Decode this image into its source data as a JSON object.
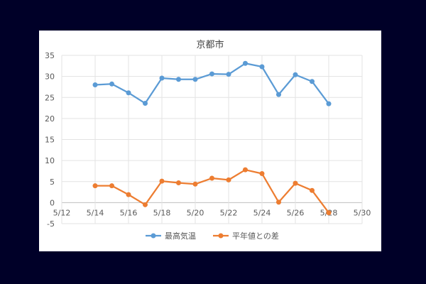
{
  "chart_data": {
    "type": "line",
    "title": "京都市",
    "xlabel": "",
    "ylabel": "",
    "x_ticks": [
      "5/12",
      "5/14",
      "5/16",
      "5/18",
      "5/20",
      "5/22",
      "5/24",
      "5/26",
      "5/28",
      "5/30"
    ],
    "y_ticks": [
      "35",
      "30",
      "25",
      "20",
      "15",
      "10",
      "5",
      "0",
      "-5"
    ],
    "xlim": [
      "5/12",
      "5/30"
    ],
    "ylim": [
      -5,
      35
    ],
    "grid": true,
    "legend_position": "bottom",
    "x": [
      "5/14",
      "5/15",
      "5/16",
      "5/17",
      "5/18",
      "5/19",
      "5/20",
      "5/21",
      "5/22",
      "5/23",
      "5/24",
      "5/25",
      "5/26",
      "5/27",
      "5/28"
    ],
    "series": [
      {
        "name": "最高気温",
        "color": "#5b9bd5",
        "values": [
          28.0,
          28.2,
          26.1,
          23.6,
          29.6,
          29.3,
          29.3,
          30.6,
          30.5,
          33.1,
          32.3,
          25.7,
          30.4,
          28.8,
          23.5
        ]
      },
      {
        "name": "平年値との差",
        "color": "#ed7d31",
        "values": [
          4.0,
          4.0,
          1.9,
          -0.5,
          5.1,
          4.7,
          4.4,
          5.8,
          5.4,
          7.8,
          6.9,
          0.1,
          4.6,
          2.9,
          -2.4
        ]
      }
    ]
  }
}
